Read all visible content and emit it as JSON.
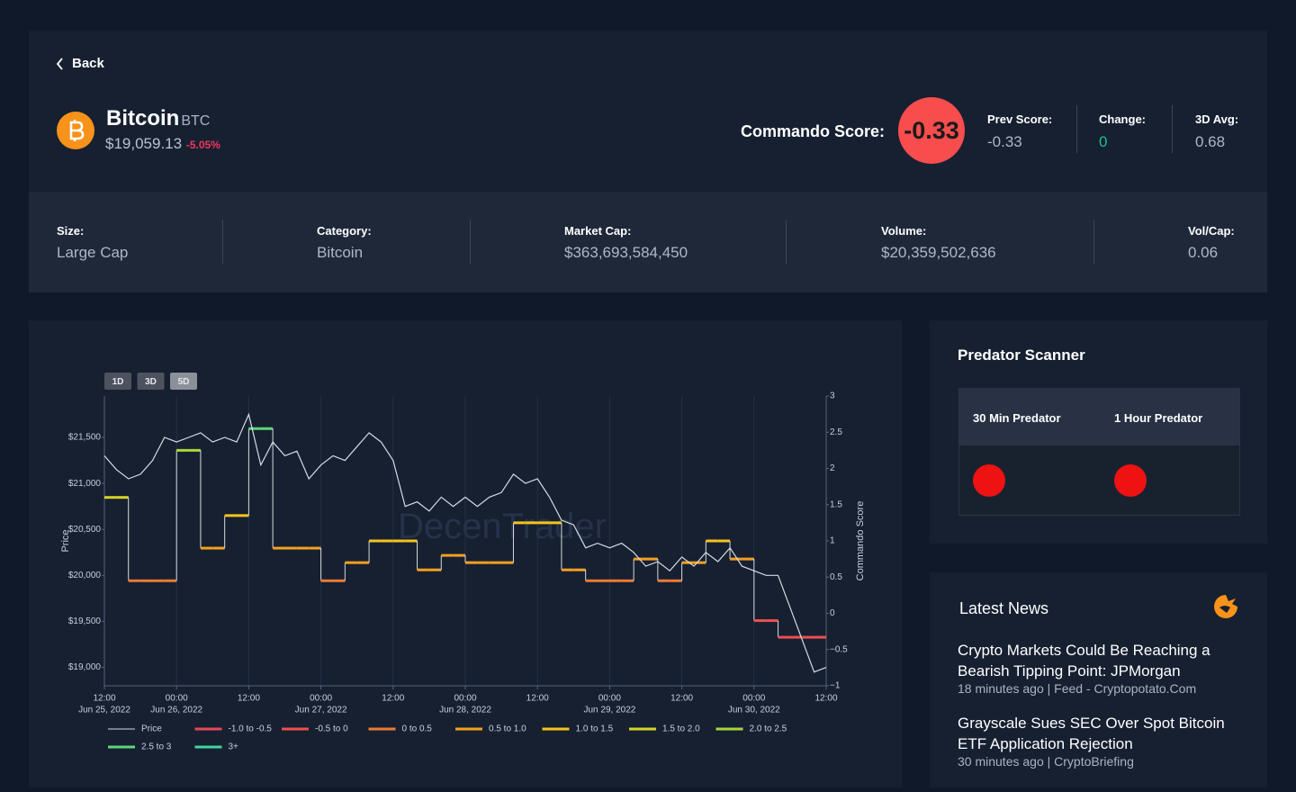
{
  "nav": {
    "back": "Back"
  },
  "coin": {
    "name": "Bitcoin",
    "symbol": "BTC",
    "price": "$19,059.13",
    "change": "-5.05%"
  },
  "score": {
    "label": "Commando Score:",
    "value": "-0.33",
    "metrics": [
      {
        "label": "Prev Score:",
        "value": "-0.33"
      },
      {
        "label": "Change:",
        "value": "0"
      },
      {
        "label": "3D Avg:",
        "value": "0.68"
      }
    ]
  },
  "stats": [
    {
      "label": "Size:",
      "value": "Large Cap"
    },
    {
      "label": "Category:",
      "value": "Bitcoin"
    },
    {
      "label": "Market Cap:",
      "value": "$363,693,584,450"
    },
    {
      "label": "Volume:",
      "value": "$20,359,502,636"
    },
    {
      "label": "Vol/Cap:",
      "value": "0.06"
    }
  ],
  "chart_data": {
    "type": "line",
    "range_buttons": [
      "1D",
      "3D",
      "5D"
    ],
    "active_range": "5D",
    "watermark": "DecenTrader",
    "y_label": "Price",
    "y2_label": "Commando Score",
    "x": [
      "2022-06-25T12:00",
      "2022-06-25T14:00",
      "2022-06-25T16:00",
      "2022-06-25T18:00",
      "2022-06-25T20:00",
      "2022-06-25T22:00",
      "2022-06-26T00:00",
      "2022-06-26T02:00",
      "2022-06-26T04:00",
      "2022-06-26T06:00",
      "2022-06-26T08:00",
      "2022-06-26T10:00",
      "2022-06-26T12:00",
      "2022-06-26T14:00",
      "2022-06-26T16:00",
      "2022-06-26T18:00",
      "2022-06-26T20:00",
      "2022-06-26T22:00",
      "2022-06-27T00:00",
      "2022-06-27T02:00",
      "2022-06-27T04:00",
      "2022-06-27T06:00",
      "2022-06-27T08:00",
      "2022-06-27T10:00",
      "2022-06-27T12:00",
      "2022-06-27T14:00",
      "2022-06-27T16:00",
      "2022-06-27T18:00",
      "2022-06-27T20:00",
      "2022-06-27T22:00",
      "2022-06-28T00:00",
      "2022-06-28T02:00",
      "2022-06-28T04:00",
      "2022-06-28T06:00",
      "2022-06-28T08:00",
      "2022-06-28T10:00",
      "2022-06-28T12:00",
      "2022-06-28T14:00",
      "2022-06-28T16:00",
      "2022-06-28T18:00",
      "2022-06-28T20:00",
      "2022-06-28T22:00",
      "2022-06-29T00:00",
      "2022-06-29T02:00",
      "2022-06-29T04:00",
      "2022-06-29T06:00",
      "2022-06-29T08:00",
      "2022-06-29T10:00",
      "2022-06-29T12:00",
      "2022-06-29T14:00",
      "2022-06-29T16:00",
      "2022-06-29T18:00",
      "2022-06-29T20:00",
      "2022-06-29T22:00",
      "2022-06-30T00:00",
      "2022-06-30T02:00",
      "2022-06-30T04:00",
      "2022-06-30T06:00",
      "2022-06-30T08:00",
      "2022-06-30T10:00",
      "2022-06-30T12:00"
    ],
    "xlim": [
      "2022-06-25T12:00",
      "2022-06-30T12:00"
    ],
    "xticks": [
      {
        "value": "2022-06-25T12:00",
        "label": [
          "12:00",
          "Jun 25, 2022"
        ]
      },
      {
        "value": "2022-06-26T00:00",
        "label": [
          "00:00",
          "Jun 26, 2022"
        ]
      },
      {
        "value": "2022-06-26T12:00",
        "label": "12:00"
      },
      {
        "value": "2022-06-27T00:00",
        "label": [
          "00:00",
          "Jun 27, 2022"
        ]
      },
      {
        "value": "2022-06-27T12:00",
        "label": "12:00"
      },
      {
        "value": "2022-06-28T00:00",
        "label": [
          "00:00",
          "Jun 28, 2022"
        ]
      },
      {
        "value": "2022-06-28T12:00",
        "label": "12:00"
      },
      {
        "value": "2022-06-29T00:00",
        "label": [
          "00:00",
          "Jun 29, 2022"
        ]
      },
      {
        "value": "2022-06-29T12:00",
        "label": "12:00"
      },
      {
        "value": "2022-06-30T00:00",
        "label": [
          "00:00",
          "Jun 30, 2022"
        ]
      },
      {
        "value": "2022-06-30T12:00",
        "label": "12:00"
      }
    ],
    "xgrid": true,
    "ylim": [
      18800,
      21950
    ],
    "yticks": [
      {
        "value": 19000,
        "label": "$19,000"
      },
      {
        "value": 19500,
        "label": "$19,500"
      },
      {
        "value": 20000,
        "label": "$20,000"
      },
      {
        "value": 20500,
        "label": "$20,500"
      },
      {
        "value": 21000,
        "label": "$21,000"
      },
      {
        "value": 21500,
        "label": "$21,500"
      }
    ],
    "y2lim": [
      -1,
      3
    ],
    "y2ticks": [
      {
        "value": -1,
        "label": "−1"
      },
      {
        "value": -0.5,
        "label": "−0.5"
      },
      0,
      0.5,
      1,
      1.5,
      2,
      2.5,
      3
    ],
    "series": [
      {
        "name": "Price",
        "color": "#d5dbe3",
        "values": [
          21300,
          21150,
          21050,
          21100,
          21250,
          21500,
          21450,
          21500,
          21550,
          21450,
          21500,
          21450,
          21750,
          21200,
          21450,
          21300,
          21350,
          21050,
          21200,
          21300,
          21250,
          21400,
          21550,
          21450,
          21250,
          20750,
          20800,
          20700,
          20850,
          20750,
          20850,
          20750,
          20850,
          20900,
          21100,
          21000,
          21050,
          20850,
          20600,
          20550,
          20300,
          20350,
          20300,
          20350,
          20250,
          20100,
          20150,
          20050,
          20200,
          20100,
          20250,
          20150,
          20300,
          20100,
          20050,
          20000,
          20000,
          19650,
          19300,
          18950,
          19000
        ]
      },
      {
        "axis": "y2",
        "style": "step",
        "values": [
          1.6,
          1.6,
          0.45,
          0.45,
          0.45,
          0.45,
          2.25,
          2.25,
          0.9,
          0.9,
          1.35,
          1.35,
          2.55,
          2.55,
          0.9,
          0.9,
          0.9,
          0.9,
          0.45,
          0.45,
          0.7,
          0.7,
          1,
          1,
          1,
          1,
          0.6,
          0.6,
          0.8,
          0.8,
          0.7,
          0.7,
          0.7,
          0.7,
          1.25,
          1.25,
          1.25,
          1.25,
          0.6,
          0.6,
          0.45,
          0.45,
          0.45,
          0.45,
          0.75,
          0.75,
          0.45,
          0.45,
          0.7,
          0.7,
          1,
          1,
          0.75,
          0.75,
          -0.1,
          -0.1,
          -0.33,
          -0.33,
          -0.33,
          -0.33,
          -0.33
        ]
      }
    ],
    "bands": [
      {
        "name": "-1.0 to -0.5",
        "range": [
          -1,
          -0.5
        ],
        "color": "#e8455a"
      },
      {
        "name": "-0.5 to 0",
        "range": [
          -0.5,
          0
        ],
        "color": "#ee4f4f"
      },
      {
        "name": "0 to 0.5",
        "range": [
          0,
          0.5
        ],
        "color": "#f07a35"
      },
      {
        "name": "0.5 to 1.0",
        "range": [
          0.5,
          1
        ],
        "color": "#f5a020"
      },
      {
        "name": "1.0 to 1.5",
        "range": [
          1,
          1.5
        ],
        "color": "#f5c518"
      },
      {
        "name": "1.5 to 2.0",
        "range": [
          1.5,
          2
        ],
        "color": "#d6d42a"
      },
      {
        "name": "2.0 to 2.5",
        "range": [
          2,
          2.5
        ],
        "color": "#a8d63c"
      },
      {
        "name": "2.5 to 3",
        "range": [
          2.5,
          3
        ],
        "color": "#5ed67a"
      },
      {
        "name": "3+",
        "range": [
          3
        ],
        "color": "#3dd6a0"
      }
    ]
  },
  "predator": {
    "title": "Predator Scanner",
    "columns": [
      "30 Min Predator",
      "1 Hour Predator"
    ]
  },
  "news": {
    "title": "Latest News",
    "items": [
      {
        "headline": "Crypto Markets Could Be Reaching a Bearish Tipping Point: JPMorgan",
        "meta": "18 minutes ago | Feed - Cryptopotato.Com"
      },
      {
        "headline": "Grayscale Sues SEC Over Spot Bitcoin ETF Application Rejection",
        "meta": "30 minutes ago | CryptoBriefing"
      }
    ]
  }
}
